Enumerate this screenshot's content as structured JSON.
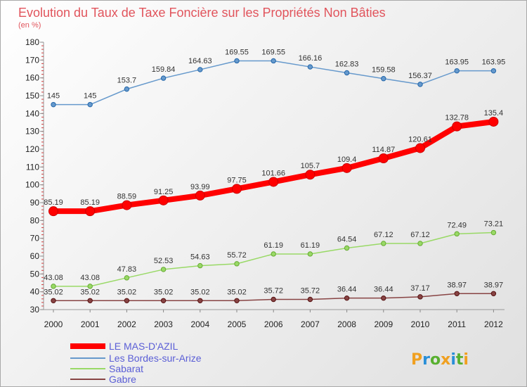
{
  "chart_data": {
    "type": "line",
    "title": "Evolution du Taux de Taxe Foncière sur les Propriétés Non Bâties",
    "subtitle": "(en %)",
    "xlabel": "",
    "ylabel": "",
    "categories": [
      "2000",
      "2001",
      "2002",
      "2003",
      "2004",
      "2005",
      "2006",
      "2007",
      "2008",
      "2009",
      "2010",
      "2011",
      "2012"
    ],
    "ylim": [
      30,
      180
    ],
    "yticks": [
      30,
      40,
      50,
      60,
      70,
      80,
      90,
      100,
      110,
      120,
      130,
      140,
      150,
      160,
      170,
      180
    ],
    "grid": false,
    "legend_position": "bottom-left",
    "series": [
      {
        "name": "LE MAS-D'AZIL",
        "color": "#ff0000",
        "values": [
          85.19,
          85.19,
          88.59,
          91.25,
          93.99,
          97.75,
          101.66,
          105.7,
          109.4,
          114.87,
          120.61,
          132.78,
          135.4
        ],
        "labels": [
          "85.19",
          "85.19",
          "88.59",
          "91.25",
          "93.99",
          "97.75",
          "101.66",
          "105.7",
          "109.4",
          "114.87",
          "120.61",
          "132.78",
          "135.4"
        ]
      },
      {
        "name": "Les Bordes-sur-Arize",
        "color": "#6699cc",
        "values": [
          145,
          145,
          153.7,
          159.84,
          164.63,
          169.55,
          169.55,
          166.16,
          162.83,
          159.58,
          156.37,
          163.95,
          163.95
        ],
        "labels": [
          "145",
          "145",
          "153.7",
          "159.84",
          "164.63",
          "169.55",
          "169.55",
          "166.16",
          "162.83",
          "159.58",
          "156.37",
          "163.95",
          "163.95"
        ]
      },
      {
        "name": "Sabarat",
        "color": "#99d966",
        "values": [
          43.08,
          43.08,
          47.83,
          52.53,
          54.63,
          55.72,
          61.19,
          61.19,
          64.54,
          67.12,
          67.12,
          72.49,
          73.21
        ],
        "labels": [
          "43.08",
          "43.08",
          "47.83",
          "52.53",
          "54.63",
          "55.72",
          "61.19",
          "61.19",
          "64.54",
          "67.12",
          "67.12",
          "72.49",
          "73.21"
        ]
      },
      {
        "name": "Gabre",
        "color": "#884444",
        "values": [
          35.02,
          35.02,
          35.02,
          35.02,
          35.02,
          35.02,
          35.72,
          35.72,
          36.44,
          36.44,
          37.17,
          38.97,
          38.97
        ],
        "labels": [
          "35.02",
          "35.02",
          "35.02",
          "35.02",
          "35.02",
          "35.02",
          "35.72",
          "35.72",
          "36.44",
          "36.44",
          "37.17",
          "38.97",
          "38.97"
        ]
      }
    ]
  },
  "logo": {
    "text": "Proxiti",
    "colors": [
      "#f0a020",
      "#2a8fd8",
      "#58b030"
    ]
  }
}
